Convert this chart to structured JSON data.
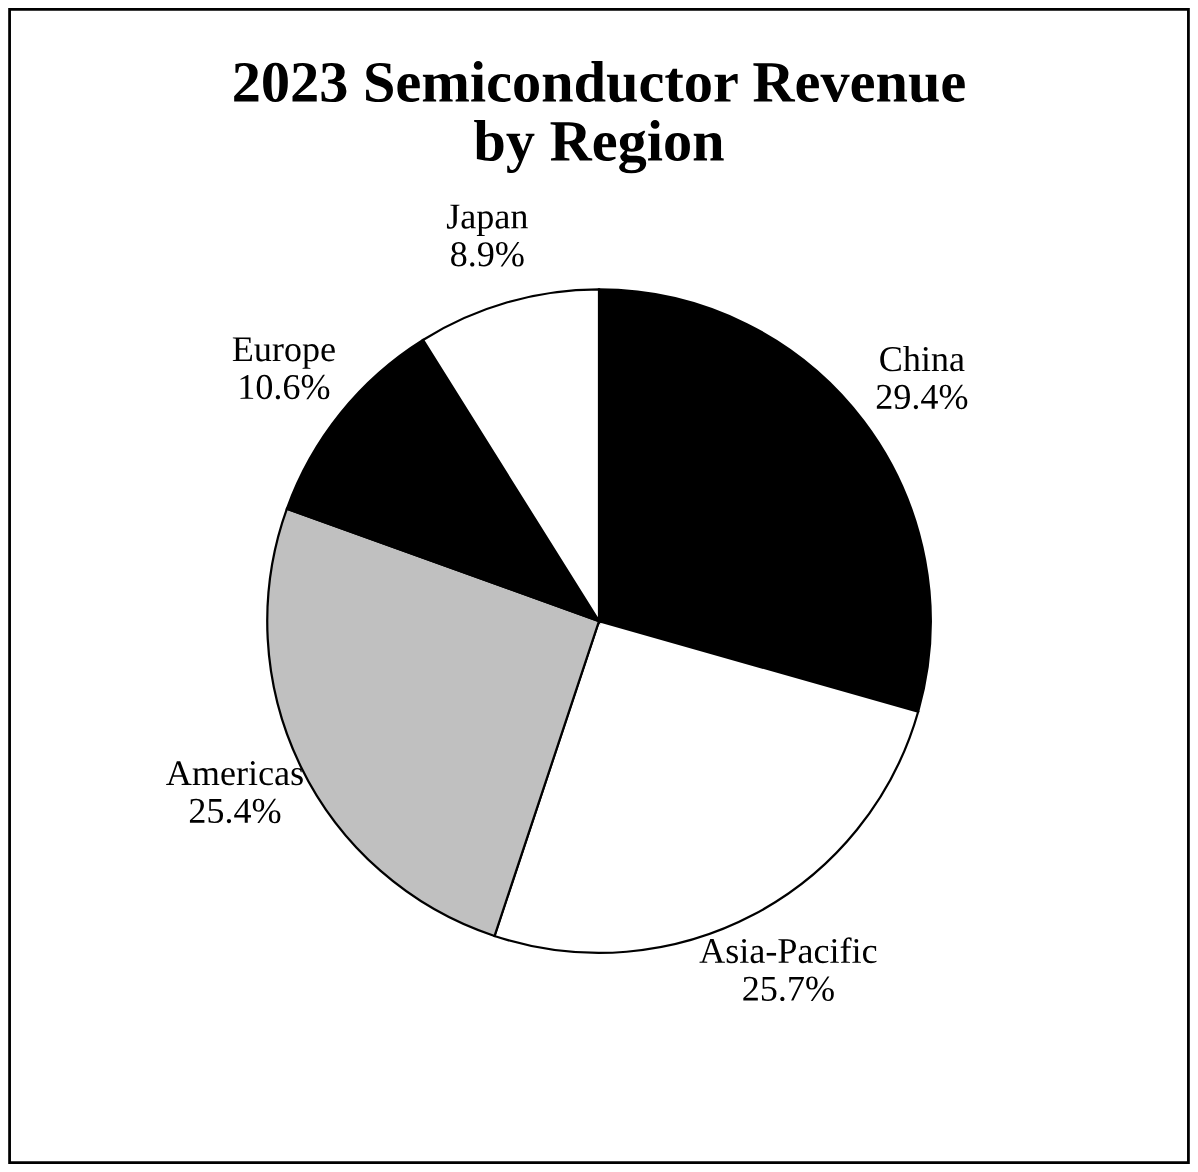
{
  "chart_data": {
    "type": "pie",
    "title": "2023 Semiconductor Revenue\nby Region",
    "categories": [
      "China",
      "Asia-Pacific",
      "Americas",
      "Europe",
      "Japan"
    ],
    "values": [
      29.4,
      25.7,
      25.4,
      10.6,
      8.9
    ],
    "colors": [
      "#000000",
      "#ffffff",
      "#c0c0c0",
      "#000000",
      "#ffffff"
    ],
    "value_labels": [
      "29.4%",
      "25.7%",
      "25.4%",
      "10.6%",
      "8.9%"
    ]
  }
}
